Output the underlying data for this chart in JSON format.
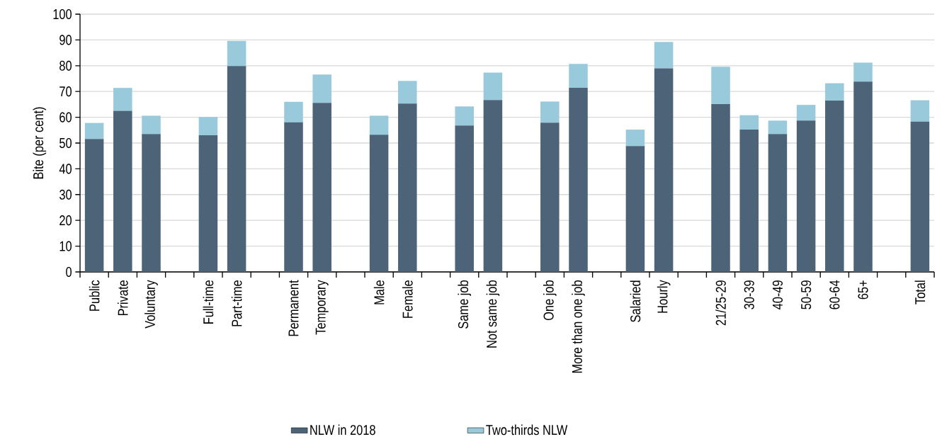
{
  "chart_data": {
    "type": "bar",
    "stacked": true,
    "ylabel": "Bite (per cent)",
    "categories": [
      "Public",
      "Private",
      "Voluntary",
      null,
      "Full-time",
      "Part-time",
      null,
      "Permanent",
      "Temporary",
      null,
      "Male",
      "Female",
      null,
      "Same job",
      "Not same job",
      null,
      "One job",
      "More than one job",
      null,
      "Salaried",
      "Hourly",
      null,
      "21/25-29",
      "30-39",
      "40-49",
      "50-59",
      "60-64",
      "65+",
      null,
      "Total"
    ],
    "series": [
      {
        "name": "NLW in 2018",
        "color": "#4d6378",
        "values": [
          51.6,
          62.5,
          53.5,
          null,
          53.0,
          79.9,
          null,
          58.0,
          65.6,
          null,
          53.2,
          65.3,
          null,
          56.8,
          66.7,
          null,
          57.9,
          71.4,
          null,
          48.8,
          79.0,
          null,
          65.1,
          55.2,
          53.5,
          58.7,
          66.5,
          73.8,
          null,
          58.3
        ]
      },
      {
        "name": "Two-thirds NLW",
        "color": "#99cadb",
        "values": [
          6.2,
          8.9,
          7.1,
          null,
          7.1,
          9.7,
          null,
          8.0,
          11.0,
          null,
          7.4,
          8.8,
          null,
          7.4,
          10.6,
          null,
          8.2,
          9.3,
          null,
          6.4,
          10.2,
          null,
          14.5,
          5.6,
          5.2,
          6.1,
          6.7,
          7.4,
          null,
          8.3
        ]
      }
    ],
    "ylim": [
      0,
      100
    ],
    "yticks": [
      0,
      10,
      20,
      30,
      40,
      50,
      60,
      70,
      80,
      90,
      100
    ],
    "grid": "y",
    "legend": "bottom"
  }
}
